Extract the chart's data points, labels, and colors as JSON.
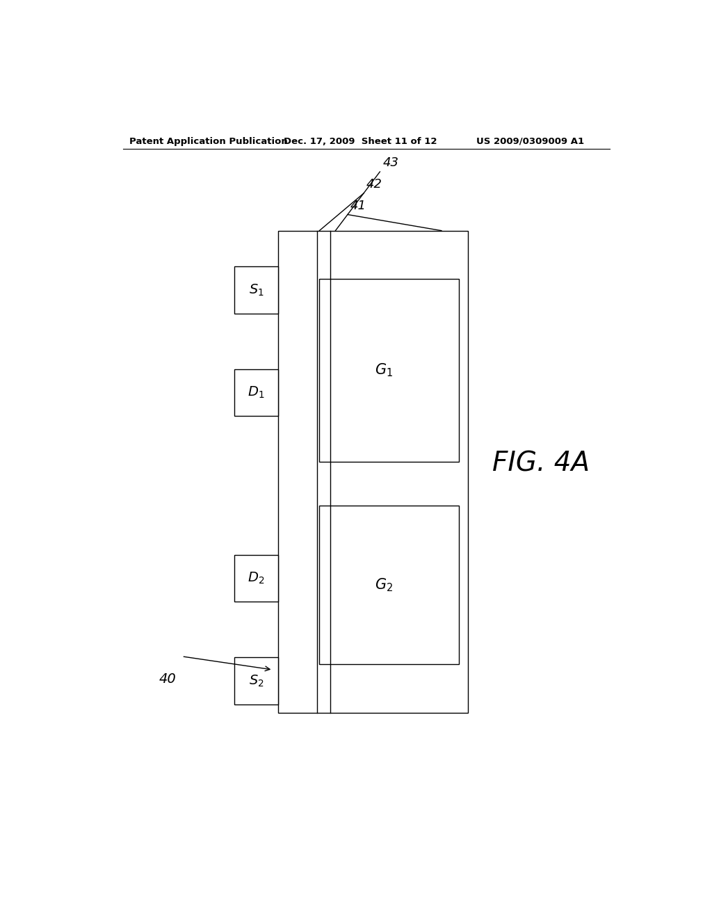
{
  "background_color": "#ffffff",
  "header_left": "Patent Application Publication",
  "header_mid": "Dec. 17, 2009  Sheet 11 of 12",
  "header_right": "US 2009/0309009 A1",
  "fig_label": "FIG. 4A",
  "device_label": "40",
  "lw": 1.0
}
